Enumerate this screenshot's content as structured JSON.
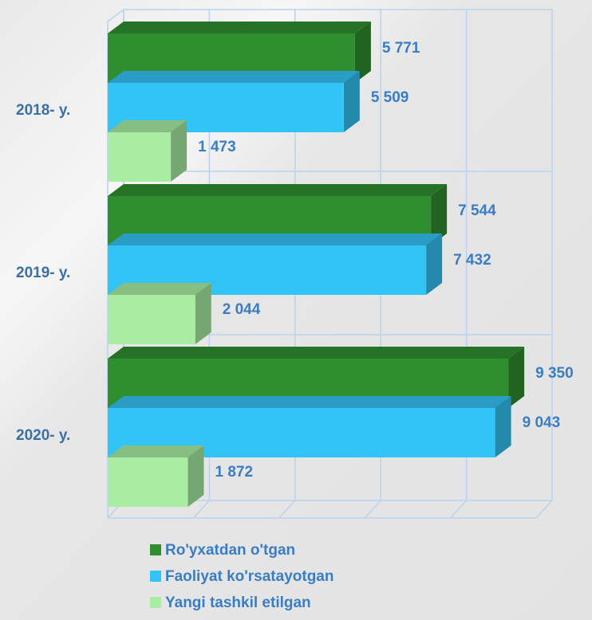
{
  "chart_data": {
    "type": "bar",
    "orientation": "horizontal",
    "categories": [
      "2018- y.",
      "2019- y.",
      "2020- y."
    ],
    "series": [
      {
        "name": "Ro'yxatdan o'tgan",
        "color": "#2f8f2f",
        "values": [
          5771,
          7544,
          9350
        ],
        "value_labels": [
          "5 771",
          "7 544",
          "9 350"
        ]
      },
      {
        "name": "Faoliyat ko'rsatayotgan",
        "color": "#33c4f7",
        "values": [
          5509,
          7432,
          9043
        ],
        "value_labels": [
          "5 509",
          "7 432",
          "9 043"
        ]
      },
      {
        "name": "Yangi tashkil etilgan",
        "color": "#a9eda2",
        "values": [
          1473,
          2044,
          1872
        ],
        "value_labels": [
          "1 473",
          "2 044",
          "1 872"
        ]
      }
    ],
    "xlim": [
      0,
      10000
    ],
    "xticks": [
      0,
      2000,
      4000,
      6000,
      8000,
      10000
    ],
    "grid": true,
    "legend": "bottom"
  }
}
